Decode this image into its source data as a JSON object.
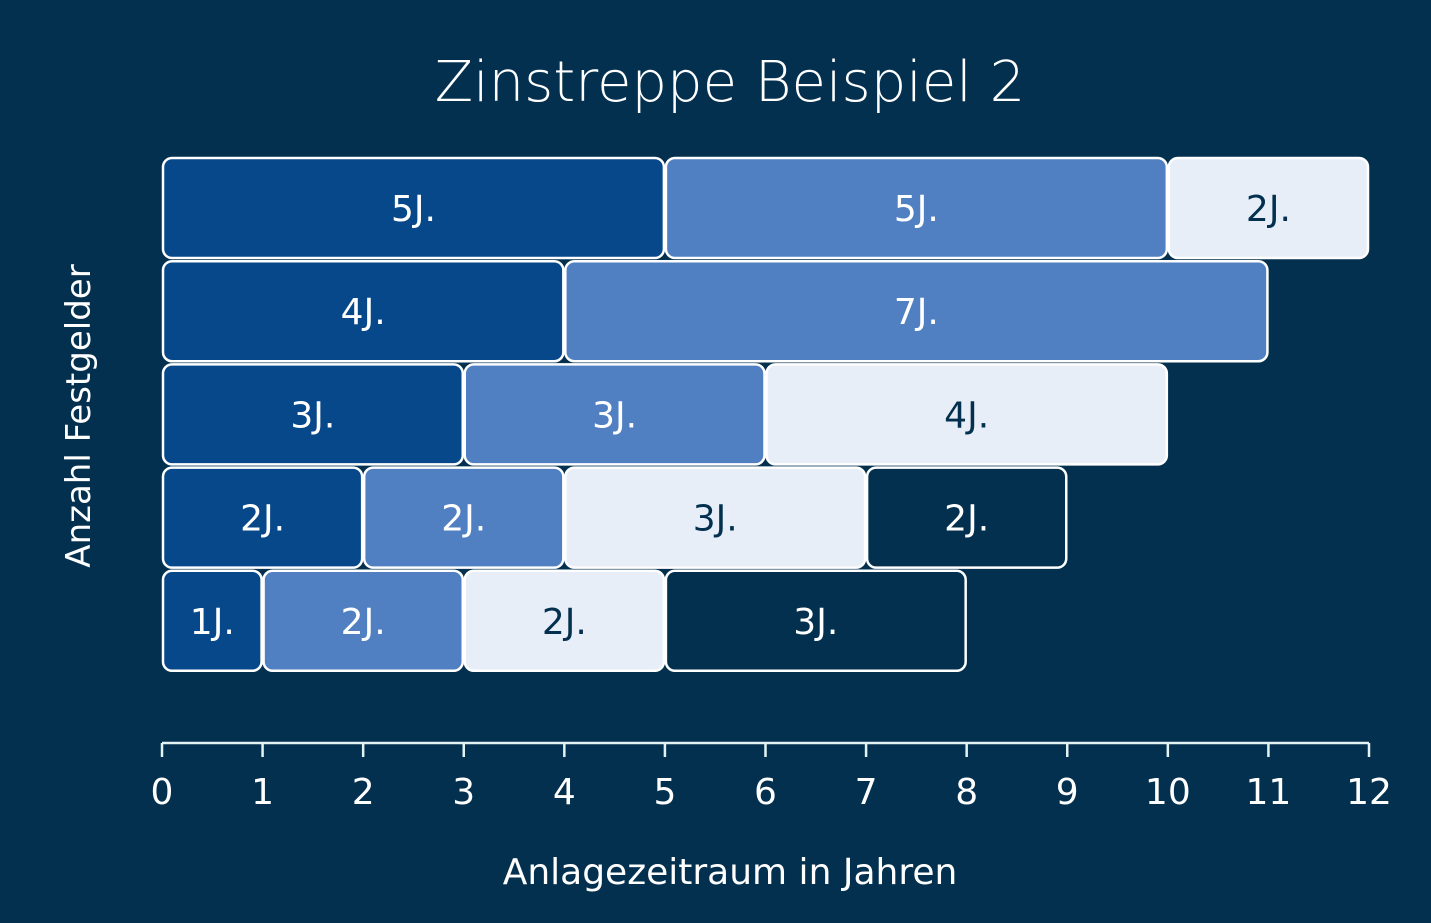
{
  "chart_data": {
    "type": "bar",
    "orientation": "horizontal-stacked",
    "title": "Zinstreppe Beispiel 2",
    "xlabel": "Anlagezeitraum in Jahren",
    "ylabel": "Anzahl Festgelder",
    "xlim": [
      0,
      12
    ],
    "x_ticks": [
      "0",
      "1",
      "2",
      "3",
      "4",
      "5",
      "6",
      "7",
      "8",
      "9",
      "10",
      "11",
      "12"
    ],
    "grid": false,
    "colors": {
      "background": "#03304f",
      "dark": "#07488a",
      "mid": "#5180c2",
      "light": "#e8eef8",
      "navy": "#03304f",
      "axis": "#e3f2f2"
    },
    "rows": [
      {
        "segments": [
          {
            "start": 0,
            "years": 5,
            "label": "5J.",
            "color": "dark"
          },
          {
            "start": 5,
            "years": 5,
            "label": "5J.",
            "color": "mid"
          },
          {
            "start": 10,
            "years": 2,
            "label": "2J.",
            "color": "light"
          }
        ]
      },
      {
        "segments": [
          {
            "start": 0,
            "years": 4,
            "label": "4J.",
            "color": "dark"
          },
          {
            "start": 4,
            "years": 7,
            "label": "7J.",
            "color": "mid"
          }
        ]
      },
      {
        "segments": [
          {
            "start": 0,
            "years": 3,
            "label": "3J.",
            "color": "dark"
          },
          {
            "start": 3,
            "years": 3,
            "label": "3J.",
            "color": "mid"
          },
          {
            "start": 6,
            "years": 4,
            "label": "4J.",
            "color": "light"
          }
        ]
      },
      {
        "segments": [
          {
            "start": 0,
            "years": 2,
            "label": "2J.",
            "color": "dark"
          },
          {
            "start": 2,
            "years": 2,
            "label": "2J.",
            "color": "mid"
          },
          {
            "start": 4,
            "years": 3,
            "label": "3J.",
            "color": "light"
          },
          {
            "start": 7,
            "years": 2,
            "label": "2J.",
            "color": "navy"
          }
        ]
      },
      {
        "segments": [
          {
            "start": 0,
            "years": 1,
            "label": "1J.",
            "color": "dark"
          },
          {
            "start": 1,
            "years": 2,
            "label": "2J.",
            "color": "mid"
          },
          {
            "start": 3,
            "years": 2,
            "label": "2J.",
            "color": "light"
          },
          {
            "start": 5,
            "years": 3,
            "label": "3J.",
            "color": "navy"
          }
        ]
      }
    ]
  }
}
